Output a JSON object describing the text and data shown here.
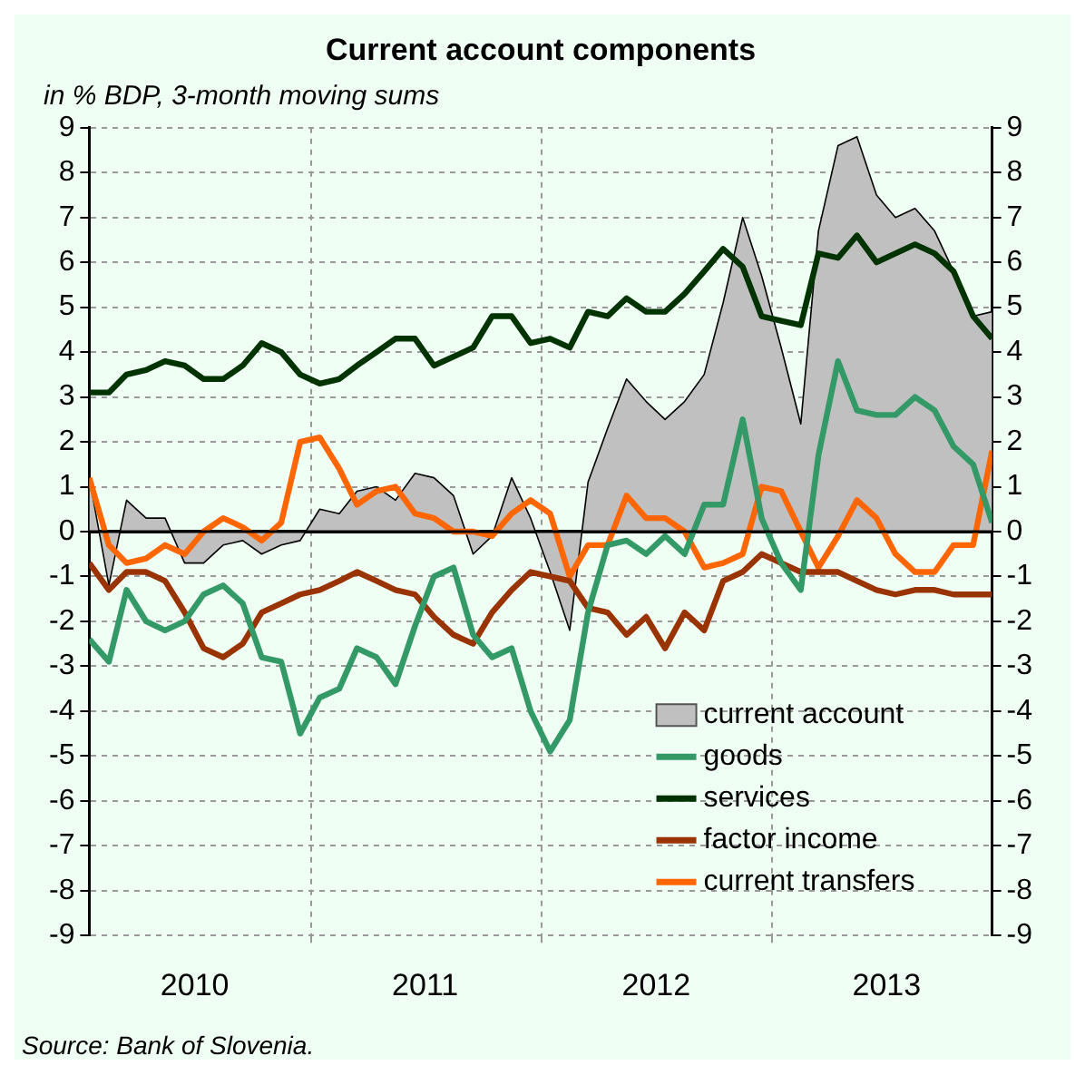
{
  "chart_data": {
    "type": "line",
    "title": "Current account components",
    "subtitle": "in % BDP, 3-month moving sums",
    "x": [
      "2010-01-15",
      "2010-02-15",
      "2010-03-15",
      "2010-04-15",
      "2010-05-15",
      "2010-06-15",
      "2010-07-15",
      "2010-08-15",
      "2010-09-15",
      "2010-10-15",
      "2010-11-15",
      "2010-12-15",
      "2011-01-15",
      "2011-02-15",
      "2011-03-15",
      "2011-04-15",
      "2011-05-15",
      "2011-06-15",
      "2011-07-15",
      "2011-08-15",
      "2011-09-15",
      "2011-10-15",
      "2011-11-15",
      "2011-12-15",
      "2012-01-15",
      "2012-02-15",
      "2012-03-15",
      "2012-04-15",
      "2012-05-15",
      "2012-06-15",
      "2012-07-15",
      "2012-08-15",
      "2012-09-15",
      "2012-10-15",
      "2012-11-15",
      "2012-12-15",
      "2013-01-15",
      "2013-02-15",
      "2013-03-15",
      "2013-04-15",
      "2013-05-15",
      "2013-06-15",
      "2013-07-15",
      "2013-08-15",
      "2013-09-15",
      "2013-10-15",
      "2013-11-15",
      "2013-12-15"
    ],
    "series": [
      {
        "name": "current account",
        "type": "area",
        "color": "#c0c0c0",
        "values": [
          1.2,
          -1.2,
          0.7,
          0.3,
          0.3,
          -0.7,
          -0.7,
          -0.3,
          -0.2,
          -0.5,
          -0.3,
          -0.2,
          0.5,
          0.4,
          0.9,
          1.0,
          0.7,
          1.3,
          1.2,
          0.8,
          -0.5,
          -0.1,
          1.2,
          0.3,
          -0.9,
          -2.2,
          1.1,
          2.3,
          3.4,
          2.9,
          2.5,
          2.9,
          3.5,
          5.1,
          7.0,
          5.7,
          4.1,
          2.4,
          6.7,
          8.6,
          8.8,
          7.5,
          7.0,
          7.2,
          6.7,
          5.8,
          4.8,
          4.9
        ]
      },
      {
        "name": "goods",
        "color": "#339966",
        "values": [
          -2.4,
          -2.9,
          -1.3,
          -2.0,
          -2.2,
          -2.0,
          -1.4,
          -1.2,
          -1.6,
          -2.8,
          -2.9,
          -4.5,
          -3.7,
          -3.5,
          -2.6,
          -2.8,
          -3.4,
          -2.1,
          -1.0,
          -0.8,
          -2.3,
          -2.8,
          -2.6,
          -4.0,
          -4.9,
          -4.2,
          -1.8,
          -0.3,
          -0.2,
          -0.5,
          -0.1,
          -0.5,
          0.6,
          0.6,
          2.5,
          0.3,
          -0.7,
          -1.3,
          1.7,
          3.8,
          2.7,
          2.6,
          2.6,
          3.0,
          2.7,
          1.9,
          1.5,
          0.2
        ]
      },
      {
        "name": "services",
        "color": "#003300",
        "values": [
          3.1,
          3.1,
          3.5,
          3.6,
          3.8,
          3.7,
          3.4,
          3.4,
          3.7,
          4.2,
          4.0,
          3.5,
          3.3,
          3.4,
          3.7,
          4.0,
          4.3,
          4.3,
          3.7,
          3.9,
          4.1,
          4.8,
          4.8,
          4.2,
          4.3,
          4.1,
          4.9,
          4.8,
          5.2,
          4.9,
          4.9,
          5.3,
          5.8,
          6.3,
          5.9,
          4.8,
          4.7,
          4.6,
          6.2,
          6.1,
          6.6,
          6.0,
          6.2,
          6.4,
          6.2,
          5.8,
          4.8,
          4.3
        ]
      },
      {
        "name": "factor income",
        "color": "#993300",
        "values": [
          -0.7,
          -1.3,
          -0.9,
          -0.9,
          -1.1,
          -1.8,
          -2.6,
          -2.8,
          -2.5,
          -1.8,
          -1.6,
          -1.4,
          -1.3,
          -1.1,
          -0.9,
          -1.1,
          -1.3,
          -1.4,
          -1.9,
          -2.3,
          -2.5,
          -1.8,
          -1.3,
          -0.9,
          -1.0,
          -1.1,
          -1.7,
          -1.8,
          -2.3,
          -1.9,
          -2.6,
          -1.8,
          -2.2,
          -1.1,
          -0.9,
          -0.5,
          -0.7,
          -0.9,
          -0.9,
          -0.9,
          -1.1,
          -1.3,
          -1.4,
          -1.3,
          -1.3,
          -1.4,
          -1.4,
          -1.4
        ]
      },
      {
        "name": "current transfers",
        "color": "#ff6600",
        "values": [
          1.2,
          -0.3,
          -0.7,
          -0.6,
          -0.3,
          -0.5,
          0.0,
          0.3,
          0.1,
          -0.2,
          0.2,
          2.0,
          2.1,
          1.4,
          0.6,
          0.9,
          1.0,
          0.4,
          0.3,
          0.0,
          0.0,
          -0.1,
          0.4,
          0.7,
          0.4,
          -1.0,
          -0.3,
          -0.3,
          0.8,
          0.3,
          0.3,
          0.0,
          -0.8,
          -0.7,
          -0.5,
          1.0,
          0.9,
          0.0,
          -0.8,
          -0.1,
          0.7,
          0.3,
          -0.5,
          -0.9,
          -0.9,
          -0.3,
          -0.3,
          1.8
        ]
      }
    ],
    "xlim": [
      "2010-01-15",
      "2013-12-15"
    ],
    "xticks": [
      {
        "value": "2010-07-01",
        "label": "2010"
      },
      {
        "value": "2011-01-01",
        "label": null
      },
      {
        "value": "2011-07-01",
        "label": "2011"
      },
      {
        "value": "2012-01-01",
        "label": null
      },
      {
        "value": "2012-07-01",
        "label": "2012"
      },
      {
        "value": "2013-01-01",
        "label": null
      },
      {
        "value": "2013-07-01",
        "label": "2013"
      }
    ],
    "ylim": [
      -9,
      9
    ],
    "yticks": [
      -9,
      -8,
      -7,
      -6,
      -5,
      -4,
      -3,
      -2,
      -1,
      0,
      1,
      2,
      3,
      4,
      5,
      6,
      7,
      8,
      9
    ],
    "y2lim": [
      -9,
      9
    ],
    "y2ticks": [
      -9,
      -8,
      -7,
      -6,
      -5,
      -4,
      -3,
      -2,
      -1,
      0,
      1,
      2,
      3,
      4,
      5,
      6,
      7,
      8,
      9
    ],
    "ref_lines": [
      {
        "axis": "y",
        "value": 0,
        "color": "#000000"
      }
    ],
    "grid": true,
    "legend": "bottom right",
    "marker": "none",
    "annotations": [
      "Source: Bank of Slovenia."
    ]
  }
}
